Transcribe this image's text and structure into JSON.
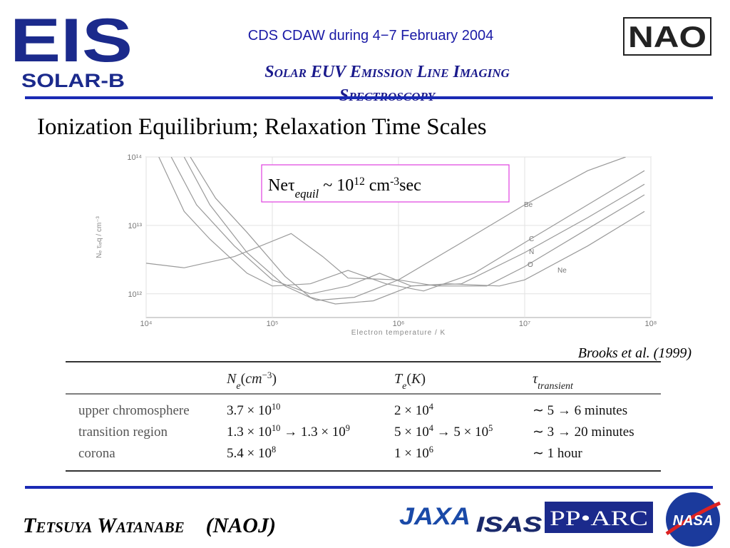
{
  "header": {
    "logo_left": {
      "main": "EIS",
      "sub": "SOLAR-B"
    },
    "event": "CDS CDAW during 4−7 February 2004",
    "subtitle_lines": [
      "Solar EUV Emission Line Imaging",
      "Spectroscopy"
    ],
    "logo_right": "NAO"
  },
  "title": "Ionization Equilibrium; Relaxation Time Scales",
  "chart_data": {
    "type": "line",
    "x_label": "Electron temperature / K",
    "y_label": "Nₑ τᵢₑq / cm⁻³",
    "xlog": true,
    "ylog": true,
    "grid": true,
    "xlim": [
      10000,
      100000000
    ],
    "ylim": [
      450000000000,
      100000000000000
    ],
    "xticks": [
      {
        "value": 10000,
        "label": "10⁴"
      },
      {
        "value": 100000,
        "label": "10⁵"
      },
      {
        "value": 1000000,
        "label": "10⁶"
      },
      {
        "value": 10000000,
        "label": "10⁷"
      },
      {
        "value": 100000000,
        "label": "10⁸"
      }
    ],
    "yticks": [
      {
        "value": 1000000000000,
        "label": "10¹²"
      },
      {
        "value": 10000000000000,
        "label": "10¹³"
      },
      {
        "value": 100000000000000,
        "label": "10¹⁴"
      }
    ],
    "annotation": [
      {
        "text": "Neτ"
      },
      {
        "text": "equil",
        "style": "sub"
      },
      {
        "text": " ~ 10"
      },
      {
        "text": "12",
        "style": "sup"
      },
      {
        "text": " cm"
      },
      {
        "text": "-3",
        "style": "sup"
      },
      {
        "text": "sec"
      }
    ],
    "series": [
      {
        "name": "Be",
        "color": "#9a9a9a",
        "x": [
          10000,
          20000,
          50000,
          141000,
          251000,
          398000,
          1000000,
          3160000,
          10000000,
          31600000,
          63100000
        ],
        "values": [
          2800000000000,
          2400000000000,
          3500000000000,
          7600000000000,
          3500000000000,
          1700000000000,
          1600000000000,
          5600000000000,
          20000000000000,
          63000000000000,
          100000000000000
        ]
      },
      {
        "name": "C",
        "color": "#9a9a9a",
        "x": [
          12600,
          20000,
          32000,
          63000,
          100000,
          200000,
          398000,
          794000,
          1580000,
          3980000,
          10000000,
          31600000,
          89000000
        ],
        "values": [
          100000000000000,
          16000000000000,
          6300000000000,
          2000000000000,
          1300000000000,
          1400000000000,
          2200000000000,
          1400000000000,
          1100000000000,
          2000000000000,
          5600000000000,
          20000000000000,
          63000000000000
        ]
      },
      {
        "name": "N",
        "color": "#9a9a9a",
        "x": [
          15800,
          25100,
          50000,
          100000,
          200000,
          398000,
          708000,
          1260000,
          3160000,
          10000000,
          31600000,
          89000000
        ],
        "values": [
          100000000000000,
          20000000000000,
          5000000000000,
          1600000000000,
          1000000000000,
          1300000000000,
          2000000000000,
          1300000000000,
          1400000000000,
          4000000000000,
          13000000000000,
          40000000000000
        ]
      },
      {
        "name": "O",
        "color": "#9a9a9a",
        "x": [
          20000,
          32000,
          63000,
          126000,
          224000,
          447000,
          1000000,
          2000000,
          5000000,
          10000000,
          31600000,
          89000000
        ],
        "values": [
          100000000000000,
          20000000000000,
          4000000000000,
          1300000000000,
          800000000000,
          890000000000,
          1600000000000,
          1300000000000,
          1300000000000,
          2500000000000,
          8900000000000,
          28000000000000
        ]
      },
      {
        "name": "Ne",
        "color": "#9a9a9a",
        "x": [
          22400,
          35500,
          63000,
          126000,
          200000,
          316000,
          631000,
          1260000,
          2510000,
          6310000,
          10000000,
          31600000,
          89000000
        ],
        "values": [
          100000000000000,
          25000000000000,
          7900000000000,
          1800000000000,
          890000000000,
          710000000000,
          790000000000,
          1300000000000,
          1400000000000,
          1300000000000,
          1600000000000,
          5000000000000,
          16000000000000
        ]
      }
    ]
  },
  "citation": "Brooks et al. (1999)",
  "table": {
    "header": [
      [
        {
          "text": ""
        }
      ],
      [
        {
          "text": "N",
          "style": "i"
        },
        {
          "text": "e",
          "style": "sub"
        },
        {
          "text": "("
        },
        {
          "text": "cm",
          "style": "i"
        },
        {
          "text": "−3",
          "style": "sup"
        },
        {
          "text": ")"
        }
      ],
      [
        {
          "text": "T",
          "style": "i"
        },
        {
          "text": "e",
          "style": "sub"
        },
        {
          "text": "("
        },
        {
          "text": "K",
          "style": "i"
        },
        {
          "text": ")"
        }
      ],
      [
        {
          "text": "τ",
          "style": "i"
        },
        {
          "text": "transient",
          "style": "sub"
        }
      ]
    ],
    "rows": [
      [
        [
          {
            "text": "upper chromosphere"
          }
        ],
        [
          {
            "text": "3.7 × 10"
          },
          {
            "text": "10",
            "style": "sup"
          }
        ],
        [
          {
            "text": "2 × 10"
          },
          {
            "text": "4",
            "style": "sup"
          }
        ],
        [
          {
            "text": "∼ 5 → 6 minutes"
          }
        ]
      ],
      [
        [
          {
            "text": "transition region"
          }
        ],
        [
          {
            "text": "1.3 × 10"
          },
          {
            "text": "10",
            "style": "sup"
          },
          {
            "text": " → 1.3 × 10"
          },
          {
            "text": "9",
            "style": "sup"
          }
        ],
        [
          {
            "text": "5 × 10"
          },
          {
            "text": "4",
            "style": "sup"
          },
          {
            "text": " → 5 × 10"
          },
          {
            "text": "5",
            "style": "sup"
          }
        ],
        [
          {
            "text": "∼ 3 → 20 minutes"
          }
        ]
      ],
      [
        [
          {
            "text": "corona"
          }
        ],
        [
          {
            "text": "5.4 × 10"
          },
          {
            "text": "8",
            "style": "sup"
          }
        ],
        [
          {
            "text": "1 × 10"
          },
          {
            "text": "6",
            "style": "sup"
          }
        ],
        [
          {
            "text": "∼ 1 hour"
          }
        ]
      ]
    ]
  },
  "footer": {
    "author": "Tetsuya Watanabe　(NAOJ)",
    "logos": [
      "JAXA",
      "ISAS",
      "PP•ARC",
      "NASA"
    ]
  }
}
